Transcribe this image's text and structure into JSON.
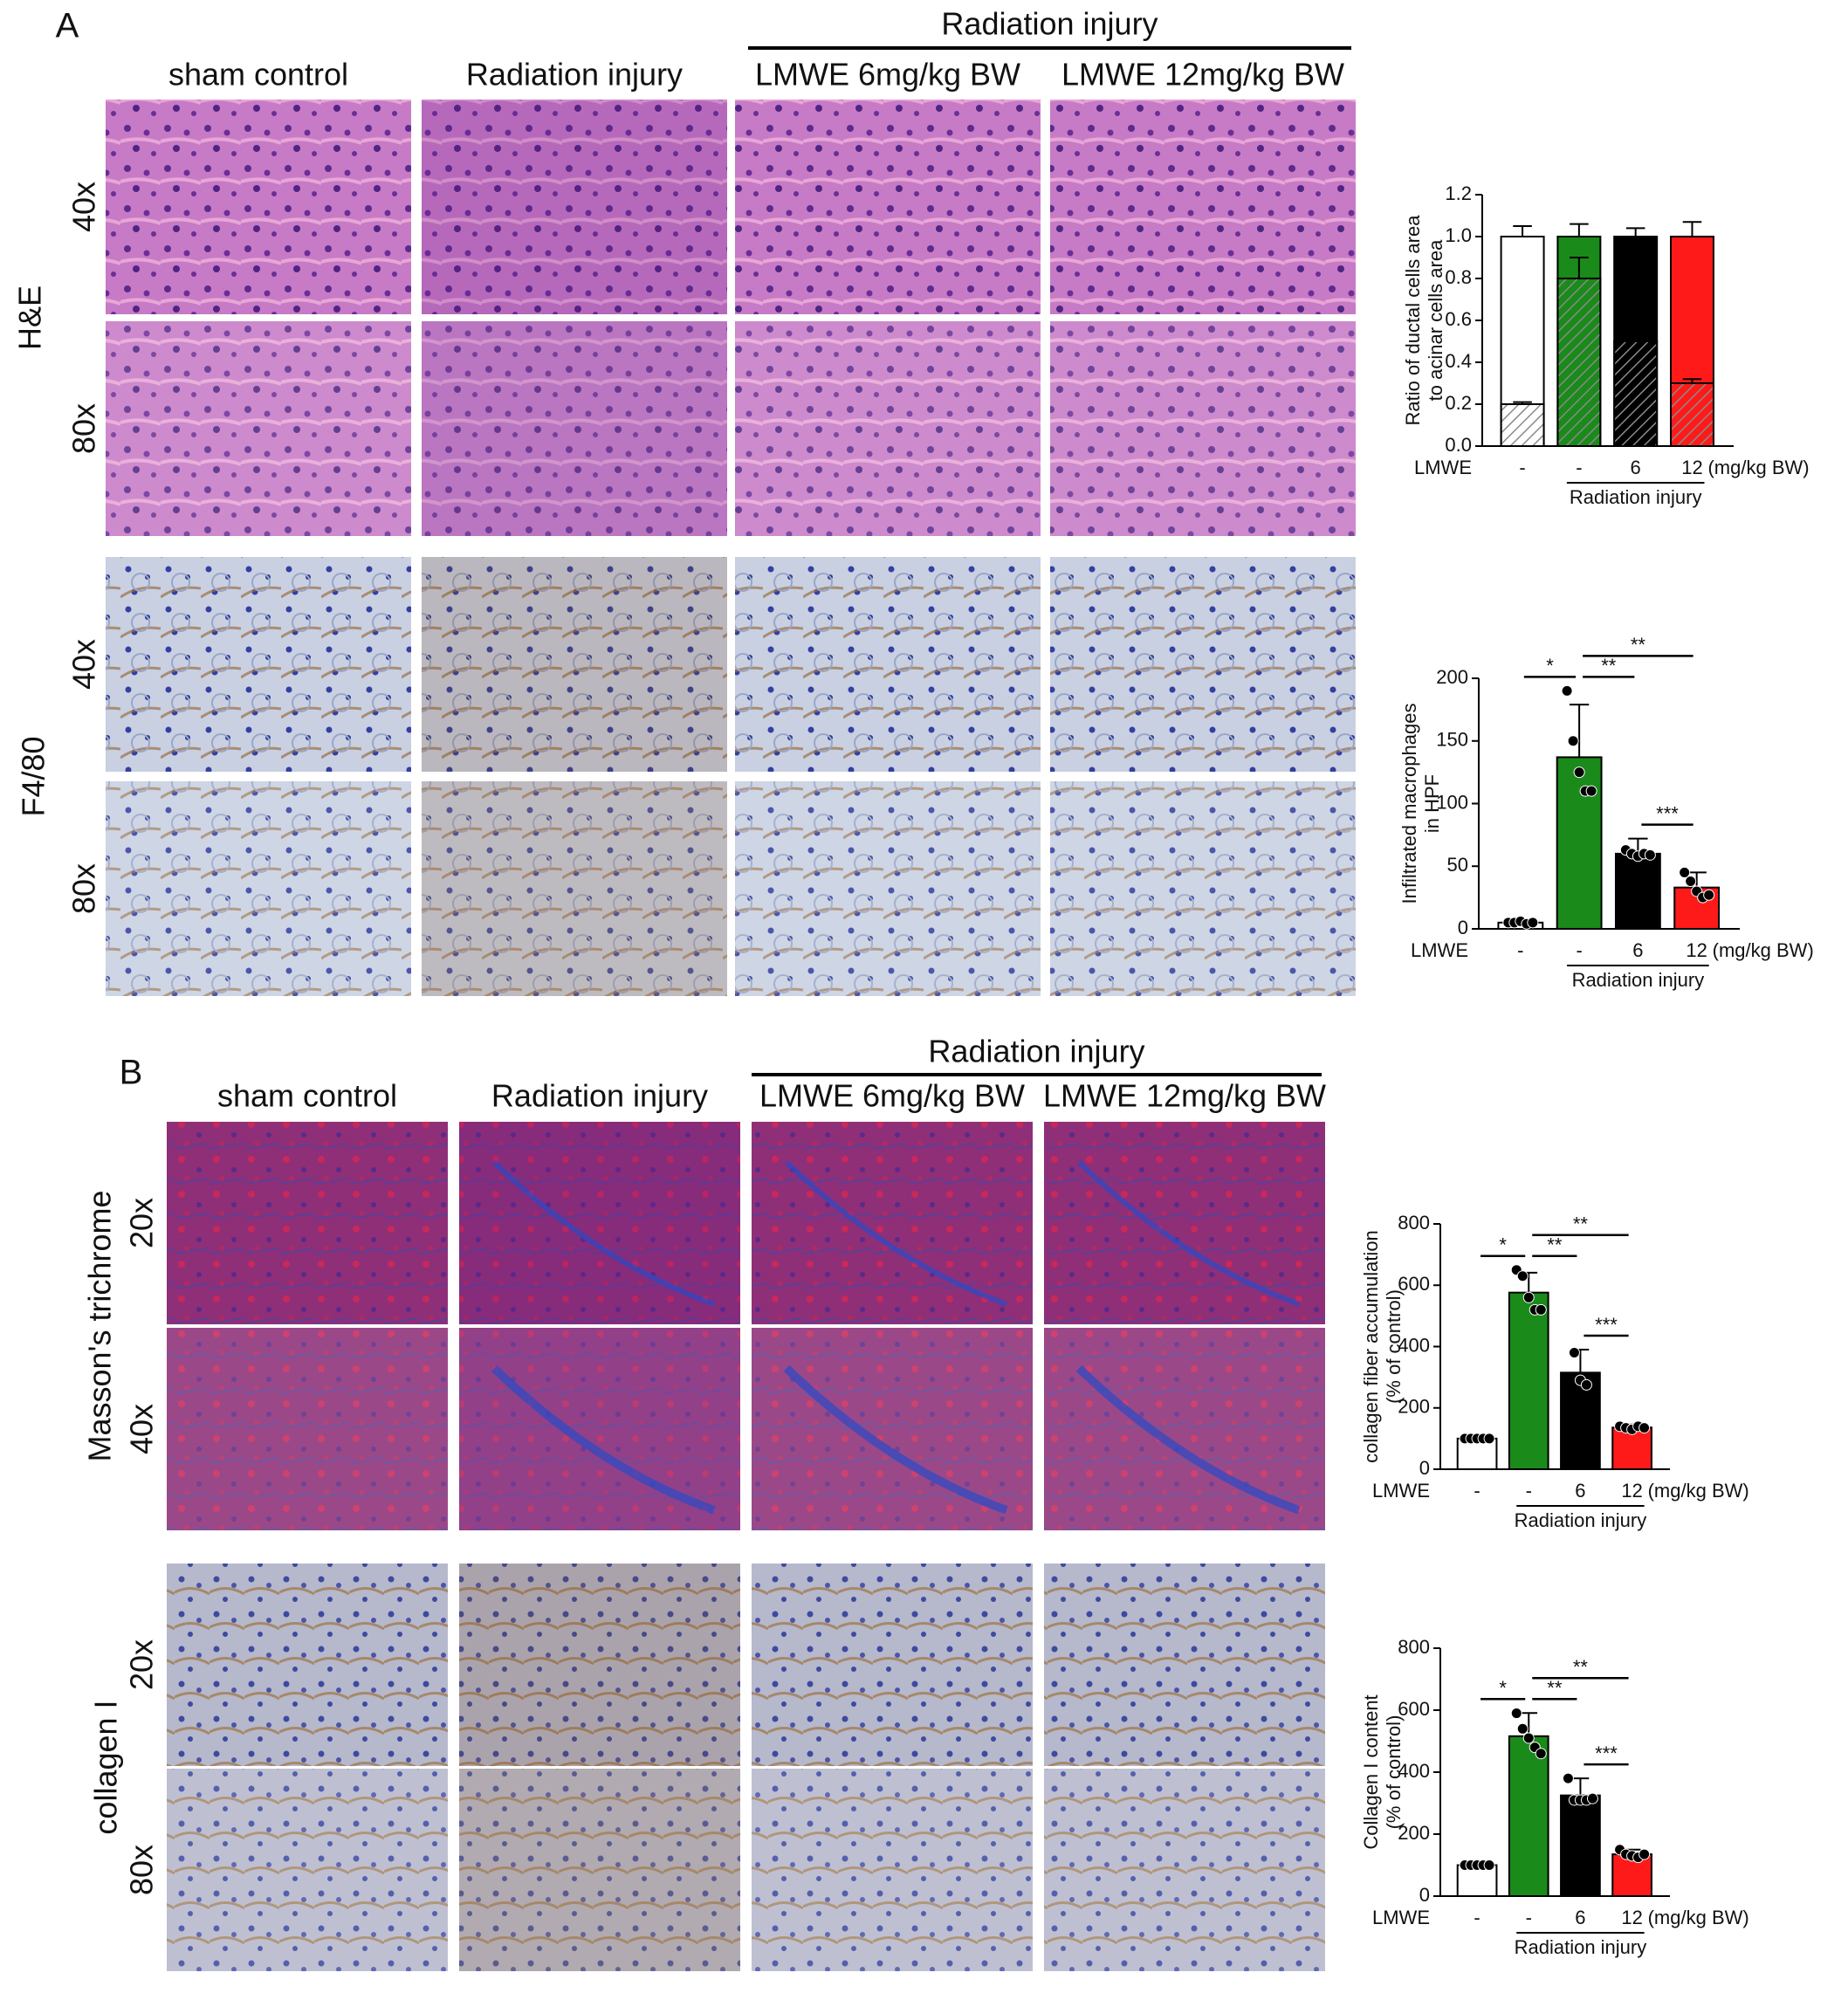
{
  "panels": [
    {
      "label": "A",
      "group_header": "Radiation injury",
      "columns": [
        "sham control",
        "Radiation injury",
        "LMWE 6mg/kg BW",
        "LMWE 12mg/kg BW"
      ],
      "rows": [
        {
          "stain": "H&E",
          "magnifications": [
            "40x",
            "80x"
          ]
        },
        {
          "stain": "F4/80",
          "magnifications": [
            "40x",
            "80x"
          ]
        }
      ]
    },
    {
      "label": "B",
      "group_header": "Radiation injury",
      "columns": [
        "sham control",
        "Radiation injury",
        "LMWE 6mg/kg BW",
        "LMWE 12mg/kg BW"
      ],
      "rows": [
        {
          "stain": "Masson's  trichrome",
          "magnifications": [
            "20x",
            "40x"
          ]
        },
        {
          "stain": "collagen I",
          "magnifications": [
            "20x",
            "80x"
          ]
        }
      ]
    }
  ],
  "chart_data": [
    {
      "type": "bar",
      "ylabel": [
        "Ratio of ductal cells area",
        "to acinar cells area"
      ],
      "row_label": "LMWE",
      "categories": [
        "-",
        "-",
        "6",
        "12"
      ],
      "unit": "(mg/kg BW)",
      "group_label": "Radiation injury",
      "colors": [
        "#ffffff",
        "#1a8a1a",
        "#000000",
        "#ff1a1a"
      ],
      "series": [
        {
          "values": [
            0.2,
            0.8,
            0.5,
            0.3
          ],
          "errors": [
            0.01,
            0.1,
            0.01,
            0.02
          ],
          "hatched": true
        },
        {
          "values": [
            0.8,
            0.2,
            0.5,
            0.7
          ],
          "errors": [
            0.05,
            0.06,
            0.04,
            0.07
          ]
        }
      ],
      "ylim": [
        0,
        1.2
      ],
      "yticks": [
        {
          "value": 0,
          "label": "0.0"
        },
        0.2,
        0.4,
        0.6,
        0.8,
        {
          "value": 1,
          "label": "1.0"
        },
        1.2
      ]
    },
    {
      "type": "bar",
      "ylabel": [
        "Infiltrated macrophages",
        "in HPF"
      ],
      "row_label": "LMWE",
      "categories": [
        "-",
        "-",
        "6",
        "12"
      ],
      "unit": "(mg/kg BW)",
      "group_label": "Radiation injury",
      "colors": [
        "#ffffff",
        "#1a8a1a",
        "#000000",
        "#ff1a1a"
      ],
      "values": [
        5,
        137,
        60,
        33
      ],
      "errors": [
        1.5,
        42,
        12,
        12
      ],
      "points": [
        [
          5,
          5,
          6,
          4,
          5
        ],
        [
          190,
          150,
          125,
          110,
          110
        ],
        [
          63,
          60,
          58,
          60,
          59
        ],
        [
          45,
          38,
          30,
          25,
          27
        ]
      ],
      "significance": [
        {
          "label": "*",
          "between": [
            0,
            1
          ]
        },
        {
          "label": "**",
          "between": [
            1,
            2
          ]
        },
        {
          "label": "**",
          "between": [
            1,
            3
          ]
        },
        {
          "label": "***",
          "between": [
            2,
            3
          ]
        }
      ],
      "ylim": [
        0,
        200
      ],
      "yticks": [
        0,
        50,
        100,
        150,
        200
      ]
    },
    {
      "type": "bar",
      "ylabel": [
        "collagen fiber accumulation",
        "(% of control)"
      ],
      "row_label": "LMWE",
      "categories": [
        "-",
        "-",
        "6",
        "12"
      ],
      "unit": "(mg/kg BW)",
      "group_label": "Radiation injury",
      "colors": [
        "#ffffff",
        "#1a8a1a",
        "#000000",
        "#ff1a1a"
      ],
      "values": [
        100,
        576,
        315,
        136
      ],
      "errors": [
        5,
        65,
        75,
        10
      ],
      "points": [
        [
          100,
          100,
          100,
          100,
          100
        ],
        [
          650,
          630,
          560,
          520,
          520
        ],
        [
          380,
          290,
          275
        ],
        [
          140,
          135,
          130,
          140,
          135
        ]
      ],
      "significance": [
        {
          "label": "*",
          "between": [
            0,
            1
          ]
        },
        {
          "label": "**",
          "between": [
            1,
            2
          ]
        },
        {
          "label": "**",
          "between": [
            1,
            3
          ]
        },
        {
          "label": "***",
          "between": [
            2,
            3
          ]
        }
      ],
      "ylim": [
        0,
        800
      ],
      "yticks": [
        0,
        200,
        400,
        600,
        800
      ]
    },
    {
      "type": "bar",
      "ylabel": [
        "Collagen I content",
        "(% of control)"
      ],
      "row_label": "LMWE",
      "categories": [
        "-",
        "-",
        "6",
        "12"
      ],
      "unit": "(mg/kg BW)",
      "group_label": "Radiation injury",
      "colors": [
        "#ffffff",
        "#1a8a1a",
        "#000000",
        "#ff1a1a"
      ],
      "values": [
        100,
        516,
        325,
        135
      ],
      "errors": [
        5,
        75,
        55,
        15
      ],
      "points": [
        [
          100,
          100,
          100,
          100,
          100
        ],
        [
          590,
          540,
          510,
          480,
          460
        ],
        [
          380,
          310,
          310,
          310,
          315
        ],
        [
          150,
          135,
          130,
          125,
          135
        ]
      ],
      "significance": [
        {
          "label": "*",
          "between": [
            0,
            1
          ]
        },
        {
          "label": "**",
          "between": [
            1,
            2
          ]
        },
        {
          "label": "**",
          "between": [
            1,
            3
          ]
        },
        {
          "label": "***",
          "between": [
            2,
            3
          ]
        }
      ],
      "ylim": [
        0,
        800
      ],
      "yticks": [
        0,
        200,
        400,
        600,
        800
      ]
    }
  ]
}
